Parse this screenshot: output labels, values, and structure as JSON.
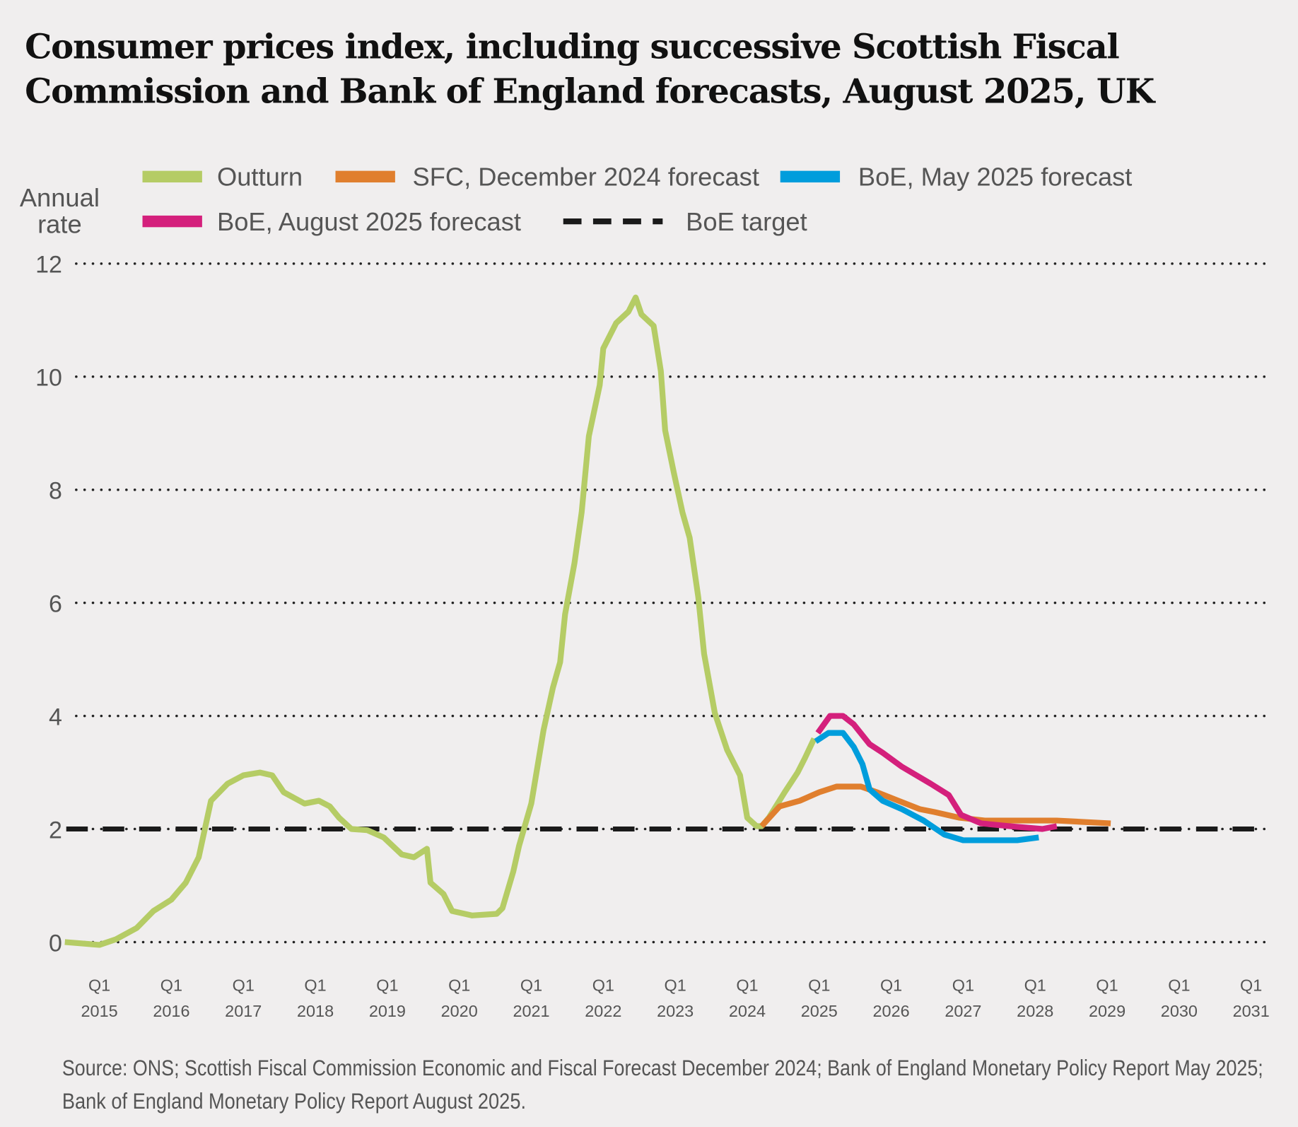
{
  "chart_data": {
    "type": "line",
    "title": "Consumer prices index, including successive Scottish Fiscal Commission and Bank of England forecasts, August 2025, UK",
    "title_lines": [
      "Consumer prices index, including successive Scottish Fiscal",
      "Commission and Bank of England forecasts, August 2025, UK"
    ],
    "ylabel_lines": [
      "Annual",
      "rate"
    ],
    "xlabel": "",
    "ylim": [
      0,
      12
    ],
    "xlim": [
      2014.5,
      2031
    ],
    "grid": true,
    "yticks": [
      0,
      2,
      4,
      6,
      8,
      10,
      12
    ],
    "xticks": [
      {
        "year": 2015,
        "q": "Q1",
        "label": "2015"
      },
      {
        "year": 2016,
        "q": "Q1",
        "label": "2016"
      },
      {
        "year": 2017,
        "q": "Q1",
        "label": "2017"
      },
      {
        "year": 2018,
        "q": "Q1",
        "label": "2018"
      },
      {
        "year": 2019,
        "q": "Q1",
        "label": "2019"
      },
      {
        "year": 2020,
        "q": "Q1",
        "label": "2020"
      },
      {
        "year": 2021,
        "q": "Q1",
        "label": "2021"
      },
      {
        "year": 2022,
        "q": "Q1",
        "label": "2022"
      },
      {
        "year": 2023,
        "q": "Q1",
        "label": "2023"
      },
      {
        "year": 2024,
        "q": "Q1",
        "label": "2024"
      },
      {
        "year": 2025,
        "q": "Q1",
        "label": "2025"
      },
      {
        "year": 2026,
        "q": "Q1",
        "label": "2026"
      },
      {
        "year": 2027,
        "q": "Q1",
        "label": "2027"
      },
      {
        "year": 2028,
        "q": "Q1",
        "label": "2028"
      },
      {
        "year": 2029,
        "q": "Q1",
        "label": "2029"
      },
      {
        "year": 2030,
        "q": "Q1",
        "label": "2030"
      },
      {
        "year": 2031,
        "q": "Q1",
        "label": "2031"
      }
    ],
    "legend_position": "top",
    "series": [
      {
        "name": "Outturn",
        "color": "#b5cc65",
        "dashed": false,
        "points": [
          [
            2014.52,
            0.0
          ],
          [
            2015.0,
            -0.05
          ],
          [
            2015.23,
            0.05
          ],
          [
            2015.52,
            0.25
          ],
          [
            2015.75,
            0.55
          ],
          [
            2016.0,
            0.75
          ],
          [
            2016.2,
            1.05
          ],
          [
            2016.38,
            1.5
          ],
          [
            2016.55,
            2.5
          ],
          [
            2016.78,
            2.8
          ],
          [
            2017.0,
            2.95
          ],
          [
            2017.23,
            3.0
          ],
          [
            2017.4,
            2.95
          ],
          [
            2017.56,
            2.65
          ],
          [
            2017.85,
            2.45
          ],
          [
            2018.05,
            2.5
          ],
          [
            2018.2,
            2.4
          ],
          [
            2018.33,
            2.2
          ],
          [
            2018.5,
            2.0
          ],
          [
            2018.72,
            1.98
          ],
          [
            2018.95,
            1.85
          ],
          [
            2019.2,
            1.55
          ],
          [
            2019.37,
            1.5
          ],
          [
            2019.55,
            1.65
          ],
          [
            2019.6,
            1.05
          ],
          [
            2019.78,
            0.85
          ],
          [
            2019.9,
            0.55
          ],
          [
            2020.18,
            0.47
          ],
          [
            2020.52,
            0.5
          ],
          [
            2020.6,
            0.6
          ],
          [
            2020.75,
            1.25
          ],
          [
            2020.83,
            1.7
          ],
          [
            2021.0,
            2.45
          ],
          [
            2021.17,
            3.75
          ],
          [
            2021.3,
            4.5
          ],
          [
            2021.4,
            4.95
          ],
          [
            2021.47,
            5.8
          ],
          [
            2021.6,
            6.7
          ],
          [
            2021.7,
            7.6
          ],
          [
            2021.8,
            8.95
          ],
          [
            2021.95,
            9.85
          ],
          [
            2022.0,
            10.5
          ],
          [
            2022.18,
            10.95
          ],
          [
            2022.35,
            11.15
          ],
          [
            2022.45,
            11.4
          ],
          [
            2022.53,
            11.1
          ],
          [
            2022.7,
            10.9
          ],
          [
            2022.8,
            10.1
          ],
          [
            2022.86,
            9.05
          ],
          [
            2022.98,
            8.3
          ],
          [
            2023.1,
            7.6
          ],
          [
            2023.2,
            7.15
          ],
          [
            2023.32,
            6.1
          ],
          [
            2023.4,
            5.1
          ],
          [
            2023.55,
            4.05
          ],
          [
            2023.72,
            3.4
          ],
          [
            2023.9,
            2.95
          ],
          [
            2024.0,
            2.2
          ],
          [
            2024.13,
            2.05
          ],
          [
            2024.2,
            2.05
          ],
          [
            2024.3,
            2.2
          ],
          [
            2024.52,
            2.65
          ],
          [
            2024.7,
            3.0
          ],
          [
            2024.8,
            3.25
          ],
          [
            2024.93,
            3.6
          ]
        ]
      },
      {
        "name": "SFC, December 2024 forecast",
        "color": "#e07f2e",
        "dashed": false,
        "points": [
          [
            2024.2,
            2.05
          ],
          [
            2024.45,
            2.4
          ],
          [
            2024.73,
            2.5
          ],
          [
            2025.0,
            2.65
          ],
          [
            2025.24,
            2.75
          ],
          [
            2025.58,
            2.75
          ],
          [
            2025.8,
            2.65
          ],
          [
            2026.1,
            2.5
          ],
          [
            2026.4,
            2.35
          ],
          [
            2026.6,
            2.3
          ],
          [
            2026.95,
            2.2
          ],
          [
            2027.3,
            2.15
          ],
          [
            2027.75,
            2.15
          ],
          [
            2028.3,
            2.15
          ],
          [
            2029.05,
            2.1
          ]
        ]
      },
      {
        "name": "BoE, May 2025 forecast",
        "color": "#009ddc",
        "dashed": false,
        "points": [
          [
            2024.95,
            3.55
          ],
          [
            2025.13,
            3.7
          ],
          [
            2025.33,
            3.7
          ],
          [
            2025.48,
            3.45
          ],
          [
            2025.6,
            3.15
          ],
          [
            2025.7,
            2.7
          ],
          [
            2025.88,
            2.5
          ],
          [
            2026.15,
            2.35
          ],
          [
            2026.45,
            2.15
          ],
          [
            2026.74,
            1.9
          ],
          [
            2027.0,
            1.8
          ],
          [
            2027.35,
            1.8
          ],
          [
            2027.75,
            1.8
          ],
          [
            2028.05,
            1.85
          ]
        ]
      },
      {
        "name": "BoE, August 2025 forecast",
        "color": "#d4207c",
        "dashed": false,
        "points": [
          [
            2024.98,
            3.7
          ],
          [
            2025.15,
            4.0
          ],
          [
            2025.33,
            4.0
          ],
          [
            2025.48,
            3.85
          ],
          [
            2025.7,
            3.5
          ],
          [
            2025.88,
            3.35
          ],
          [
            2026.15,
            3.1
          ],
          [
            2026.55,
            2.8
          ],
          [
            2026.8,
            2.6
          ],
          [
            2026.97,
            2.25
          ],
          [
            2027.25,
            2.1
          ],
          [
            2027.65,
            2.05
          ],
          [
            2028.1,
            2.0
          ],
          [
            2028.3,
            2.05
          ]
        ]
      },
      {
        "name": "BoE target",
        "color": "#1a1a1a",
        "dashed": true,
        "points": [
          [
            2014.5,
            2
          ],
          [
            2031,
            2
          ]
        ]
      }
    ],
    "source_lines": [
      "Source: ONS; Scottish Fiscal Commission Economic and Fiscal Forecast December 2024; Bank of England Monetary Policy Report May 2025;",
      "Bank of England Monetary Policy Report August 2025."
    ]
  }
}
